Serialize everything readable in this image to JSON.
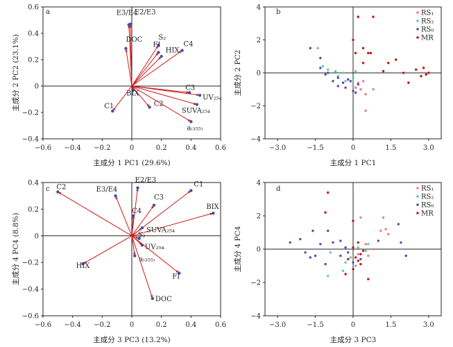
{
  "colors": {
    "axes": "#222222",
    "arrow": "#cc1a1a",
    "point_blue": "#3a4fb5",
    "rs1": "#f07a8a",
    "rs2": "#5cc8b4",
    "rs0": "#5848b0",
    "mr": "#c81414"
  },
  "chart_data": [
    {
      "panel": "a",
      "type": "biplot",
      "xlabel": "主成分 1 PC1 (29.6%)",
      "ylabel": "主成分 2 PC2 (23.1%)",
      "xlim": [
        -0.6,
        0.6
      ],
      "ylim": [
        -0.4,
        0.6
      ],
      "xticks": [
        "−0.6",
        "−0.4",
        "−0.2",
        "0",
        "0.2",
        "0.4",
        "0.6"
      ],
      "yticks": [
        "−0.4",
        "−0.2",
        "0",
        "0.2",
        "0.4",
        "0.6"
      ],
      "xtick_values": [
        -0.6,
        -0.4,
        -0.2,
        0,
        0.2,
        0.4,
        0.6
      ],
      "ytick_values": [
        -0.4,
        -0.2,
        0,
        0.2,
        0.4,
        0.6
      ],
      "vectors": [
        {
          "label": "E3/E4",
          "x": -0.02,
          "y": 0.465
        },
        {
          "label": "E2/E3",
          "x": -0.01,
          "y": 0.47
        },
        {
          "label": "DOC",
          "x": -0.04,
          "y": 0.285
        },
        {
          "label": "S₂",
          "x": 0.18,
          "y": 0.31
        },
        {
          "label": "FI",
          "x": 0.18,
          "y": 0.255
        },
        {
          "label": "HIX",
          "x": 0.2,
          "y": 0.225
        },
        {
          "label": "C4",
          "x": 0.34,
          "y": 0.27
        },
        {
          "label": "BIX",
          "x": 0.01,
          "y": -0.03
        },
        {
          "label": "C3",
          "x": 0.39,
          "y": -0.05
        },
        {
          "label": "UV₂₅₄",
          "x": 0.46,
          "y": -0.07
        },
        {
          "label": "SUVA₂₅₄",
          "x": 0.44,
          "y": -0.14
        },
        {
          "label": "C1",
          "x": -0.13,
          "y": -0.19
        },
        {
          "label": "C2",
          "x": 0.12,
          "y": -0.16
        },
        {
          "label": "a₍₃₅₅₎",
          "x": 0.4,
          "y": -0.27
        }
      ]
    },
    {
      "panel": "b",
      "type": "scatter",
      "xlabel": "主成分 1 PC1",
      "ylabel": "主成分 2 PC2",
      "xlim": [
        -3.5,
        3.5
      ],
      "ylim": [
        -4,
        4
      ],
      "xticks": [
        "−3.0",
        "−1.5",
        "0",
        "1.5",
        "3.0"
      ],
      "yticks": [
        "−4",
        "−2",
        "0",
        "2",
        "4"
      ],
      "xtick_values": [
        -3,
        -1.5,
        0,
        1.5,
        3
      ],
      "ytick_values": [
        -4,
        -2,
        0,
        2,
        4
      ],
      "legend": [
        "RS₁",
        "RS₂",
        "RS₀",
        "MR"
      ],
      "series": [
        {
          "name": "RS₁",
          "color_key": "rs1",
          "points": [
            [
              0.3,
              -1.0
            ],
            [
              0.5,
              -1.3
            ],
            [
              0.5,
              -2.3
            ],
            [
              0.8,
              -1.0
            ],
            [
              0.2,
              -0.6
            ],
            [
              0.1,
              -0.9
            ],
            [
              0.4,
              -0.5
            ]
          ]
        },
        {
          "name": "RS₂",
          "color_key": "rs2",
          "points": [
            [
              -1.4,
              1.5
            ],
            [
              -1.2,
              0.4
            ],
            [
              -1.0,
              0.2
            ],
            [
              -0.6,
              -0.2
            ],
            [
              -0.3,
              -0.5
            ],
            [
              0.0,
              -0.8
            ],
            [
              0.1,
              0.1
            ],
            [
              -0.7,
              0.1
            ],
            [
              0.0,
              -0.3
            ],
            [
              -0.4,
              0.0
            ]
          ]
        },
        {
          "name": "RS₀",
          "color_key": "rs0",
          "points": [
            [
              -1.7,
              1.5
            ],
            [
              -1.3,
              0.9
            ],
            [
              -1.3,
              0.3
            ],
            [
              -1.0,
              0.0
            ],
            [
              -0.8,
              -0.5
            ],
            [
              -0.6,
              -0.8
            ],
            [
              -0.4,
              -0.6
            ],
            [
              -0.3,
              -0.9
            ],
            [
              -0.1,
              -0.5
            ],
            [
              0.1,
              -1.2
            ],
            [
              0.2,
              -0.7
            ],
            [
              -0.2,
              -0.4
            ],
            [
              0.0,
              -1.1
            ],
            [
              -0.6,
              -0.3
            ],
            [
              -1.1,
              -0.1
            ]
          ]
        },
        {
          "name": "MR",
          "color_key": "mr",
          "points": [
            [
              0.2,
              3.4
            ],
            [
              0.8,
              3.4
            ],
            [
              0.0,
              2.0
            ],
            [
              0.4,
              1.5
            ],
            [
              0.1,
              1.2
            ],
            [
              0.6,
              1.2
            ],
            [
              0.7,
              1.2
            ],
            [
              1.7,
              0.8
            ],
            [
              1.4,
              0.6
            ],
            [
              1.2,
              0.1
            ],
            [
              0.4,
              0.6
            ],
            [
              2.5,
              0.2
            ],
            [
              2.8,
              0.3
            ],
            [
              2.0,
              0.0
            ],
            [
              2.7,
              -0.2
            ],
            [
              2.9,
              -0.1
            ],
            [
              2.2,
              -0.6
            ],
            [
              3.0,
              0.0
            ]
          ]
        }
      ]
    },
    {
      "panel": "c",
      "type": "biplot",
      "xlabel": "主成分 3 PC3 (13.2%)",
      "ylabel": "主成分 4 PC4 (8.8%)",
      "xlim": [
        -0.6,
        0.6
      ],
      "ylim": [
        -0.6,
        0.4
      ],
      "xticks": [
        "−0.6",
        "−0.4",
        "−0.2",
        "0",
        "0.2",
        "0.4",
        "0.6"
      ],
      "yticks": [
        "−0.6",
        "−0.4",
        "−0.2",
        "0",
        "0.2",
        "0.4"
      ],
      "xtick_values": [
        -0.6,
        -0.4,
        -0.2,
        0,
        0.2,
        0.4,
        0.6
      ],
      "ytick_values": [
        -0.6,
        -0.4,
        -0.2,
        0,
        0.2,
        0.4
      ],
      "vectors": [
        {
          "label": "C2",
          "x": -0.5,
          "y": 0.33
        },
        {
          "label": "E3/E4",
          "x": -0.11,
          "y": 0.3
        },
        {
          "label": "E2/E3",
          "x": 0.04,
          "y": 0.36
        },
        {
          "label": "C1",
          "x": 0.4,
          "y": 0.34
        },
        {
          "label": "BIX",
          "x": 0.55,
          "y": 0.17
        },
        {
          "label": "C3",
          "x": 0.15,
          "y": 0.23
        },
        {
          "label": "C4",
          "x": 0.01,
          "y": 0.15
        },
        {
          "label": "SUVA₂₅₄",
          "x": 0.07,
          "y": 0.06
        },
        {
          "label": "S₂",
          "x": 0.05,
          "y": -0.02
        },
        {
          "label": "UV₂₅₄",
          "x": 0.07,
          "y": -0.07
        },
        {
          "label": "a₍₃₅₅₎",
          "x": 0.02,
          "y": -0.15
        },
        {
          "label": "HIX",
          "x": -0.33,
          "y": -0.21
        },
        {
          "label": "FI",
          "x": 0.32,
          "y": -0.28
        },
        {
          "label": "DOC",
          "x": 0.14,
          "y": -0.47
        }
      ]
    },
    {
      "panel": "d",
      "type": "scatter",
      "xlabel": "主成分 3 PC3",
      "ylabel": "主成分 4 PC4",
      "xlim": [
        -3.5,
        3.5
      ],
      "ylim": [
        -4,
        4
      ],
      "xticks": [
        "−3.0",
        "−1.5",
        "0",
        "1.5",
        "3.0"
      ],
      "yticks": [
        "−4",
        "−2",
        "0",
        "2",
        "4"
      ],
      "xtick_values": [
        -3,
        -1.5,
        0,
        1.5,
        3
      ],
      "ytick_values": [
        -4,
        -2,
        0,
        2,
        4
      ],
      "legend": [
        "RS₁",
        "RS₂",
        "RS₀",
        "MR"
      ],
      "series": [
        {
          "name": "RS₁",
          "color_key": "rs1",
          "points": [
            [
              1.2,
              1.9
            ],
            [
              1.1,
              1.1
            ],
            [
              1.3,
              1.2
            ],
            [
              0.5,
              0.3
            ],
            [
              0.3,
              1.9
            ],
            [
              0.8,
              0.0
            ],
            [
              0.6,
              -0.4
            ],
            [
              1.4,
              0.9
            ],
            [
              0.2,
              -0.3
            ]
          ]
        },
        {
          "name": "RS₂",
          "color_key": "rs2",
          "points": [
            [
              -1.0,
              -1.6
            ],
            [
              -0.4,
              -1.3
            ],
            [
              0.5,
              -0.1
            ],
            [
              0.2,
              0.1
            ],
            [
              -0.3,
              -0.8
            ],
            [
              -0.1,
              -0.5
            ],
            [
              0.6,
              0.3
            ],
            [
              0.1,
              -1.0
            ],
            [
              -0.9,
              -0.2
            ]
          ]
        },
        {
          "name": "RS₀",
          "color_key": "rs0",
          "points": [
            [
              -2.5,
              0.4
            ],
            [
              -2.1,
              0.6
            ],
            [
              -1.9,
              -0.2
            ],
            [
              -1.7,
              -0.5
            ],
            [
              -1.5,
              -0.4
            ],
            [
              -1.3,
              0.3
            ],
            [
              -1.1,
              -0.9
            ],
            [
              -1.0,
              1.1
            ],
            [
              -0.8,
              0.4
            ],
            [
              -0.5,
              0.5
            ],
            [
              -0.5,
              -0.4
            ],
            [
              -0.3,
              0.1
            ],
            [
              0.0,
              -0.8
            ],
            [
              0.3,
              -0.6
            ],
            [
              1.0,
              0.5
            ],
            [
              1.9,
              0.4
            ],
            [
              1.8,
              1.5
            ],
            [
              2.1,
              -0.4
            ],
            [
              -1.6,
              1.1
            ],
            [
              -0.2,
              -0.2
            ]
          ]
        },
        {
          "name": "MR",
          "color_key": "mr",
          "points": [
            [
              -1.0,
              3.4
            ],
            [
              -1.1,
              2.2
            ],
            [
              0.0,
              1.7
            ],
            [
              0.2,
              0.4
            ],
            [
              0.0,
              0.1
            ],
            [
              0.4,
              -0.1
            ],
            [
              0.1,
              -0.5
            ],
            [
              -0.2,
              -0.6
            ],
            [
              0.3,
              -0.9
            ],
            [
              0.0,
              -1.2
            ],
            [
              0.6,
              -1.8
            ],
            [
              -0.3,
              -1.5
            ],
            [
              0.3,
              -0.3
            ],
            [
              0.2,
              -0.7
            ]
          ]
        }
      ]
    }
  ]
}
